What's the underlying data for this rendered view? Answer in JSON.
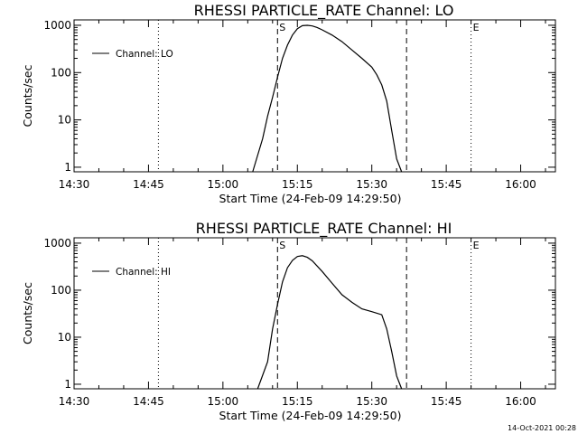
{
  "footer": {
    "timestamp": "14-Oct-2021 00:28"
  },
  "chart_data": [
    {
      "type": "line",
      "title": "RHESSI PARTICLE_RATE Channel: LO",
      "xlabel": "Start Time (24-Feb-09 14:29:50)",
      "ylabel": "Counts/sec",
      "y_scale": "log",
      "ylim": [
        0.8,
        1300
      ],
      "xlim_minutes_after_1430": [
        0,
        97
      ],
      "x_tick_labels": [
        "14:30",
        "14:45",
        "15:00",
        "15:15",
        "15:30",
        "15:45",
        "16:00"
      ],
      "x_tick_minutes": [
        0,
        15,
        30,
        45,
        60,
        75,
        90
      ],
      "y_tick_labels": [
        "1",
        "10",
        "100",
        "1000"
      ],
      "y_tick_values": [
        1,
        10,
        100,
        1000
      ],
      "legend": {
        "label": "Channel: LO",
        "placement": "top-left"
      },
      "markers": [
        {
          "label": "S",
          "time": "15:11",
          "style": "dashed"
        },
        {
          "label": "",
          "time": "15:37",
          "style": "dashed"
        },
        {
          "label": "E",
          "time": "15:50",
          "style": "dotted"
        },
        {
          "label": "",
          "time": "14:47",
          "style": "dotted"
        },
        {
          "label": "",
          "time": "16:07",
          "style": "dotted"
        }
      ],
      "series": [
        {
          "name": "Channel: LO",
          "x": [
            "15:06",
            "15:08",
            "15:09",
            "15:10",
            "15:11",
            "15:12",
            "15:13",
            "15:14",
            "15:15",
            "15:16",
            "15:17",
            "15:18",
            "15:19",
            "15:20",
            "15:22",
            "15:24",
            "15:26",
            "15:28",
            "15:30",
            "15:31",
            "15:32",
            "15:33",
            "15:34",
            "15:35",
            "15:36"
          ],
          "y": [
            0.8,
            4,
            12,
            30,
            80,
            200,
            380,
            620,
            850,
            980,
            1000,
            970,
            900,
            800,
            620,
            450,
            300,
            200,
            130,
            90,
            55,
            25,
            6,
            1.5,
            0.8
          ]
        }
      ]
    },
    {
      "type": "line",
      "title": "RHESSI PARTICLE_RATE Channel: HI",
      "xlabel": "Start Time (24-Feb-09 14:29:50)",
      "ylabel": "Counts/sec",
      "y_scale": "log",
      "ylim": [
        0.8,
        1300
      ],
      "xlim_minutes_after_1430": [
        0,
        97
      ],
      "x_tick_labels": [
        "14:30",
        "14:45",
        "15:00",
        "15:15",
        "15:30",
        "15:45",
        "16:00"
      ],
      "x_tick_minutes": [
        0,
        15,
        30,
        45,
        60,
        75,
        90
      ],
      "y_tick_labels": [
        "1",
        "10",
        "100",
        "1000"
      ],
      "y_tick_values": [
        1,
        10,
        100,
        1000
      ],
      "legend": {
        "label": "Channel: HI",
        "placement": "top-left"
      },
      "markers": [
        {
          "label": "S",
          "time": "15:11",
          "style": "dashed"
        },
        {
          "label": "",
          "time": "15:37",
          "style": "dashed"
        },
        {
          "label": "E",
          "time": "15:50",
          "style": "dotted"
        },
        {
          "label": "",
          "time": "14:47",
          "style": "dotted"
        },
        {
          "label": "",
          "time": "16:07",
          "style": "dotted"
        }
      ],
      "series": [
        {
          "name": "Channel: HI",
          "x": [
            "15:07",
            "15:09",
            "15:10",
            "15:11",
            "15:12",
            "15:13",
            "15:14",
            "15:15",
            "15:16",
            "15:17",
            "15:18",
            "15:20",
            "15:22",
            "15:24",
            "15:26",
            "15:28",
            "15:30",
            "15:32",
            "15:33",
            "15:34",
            "15:35",
            "15:36"
          ],
          "y": [
            0.8,
            3,
            15,
            50,
            150,
            300,
            430,
            520,
            540,
            500,
            420,
            250,
            140,
            80,
            55,
            40,
            35,
            30,
            15,
            5,
            1.5,
            0.8
          ]
        }
      ]
    }
  ]
}
